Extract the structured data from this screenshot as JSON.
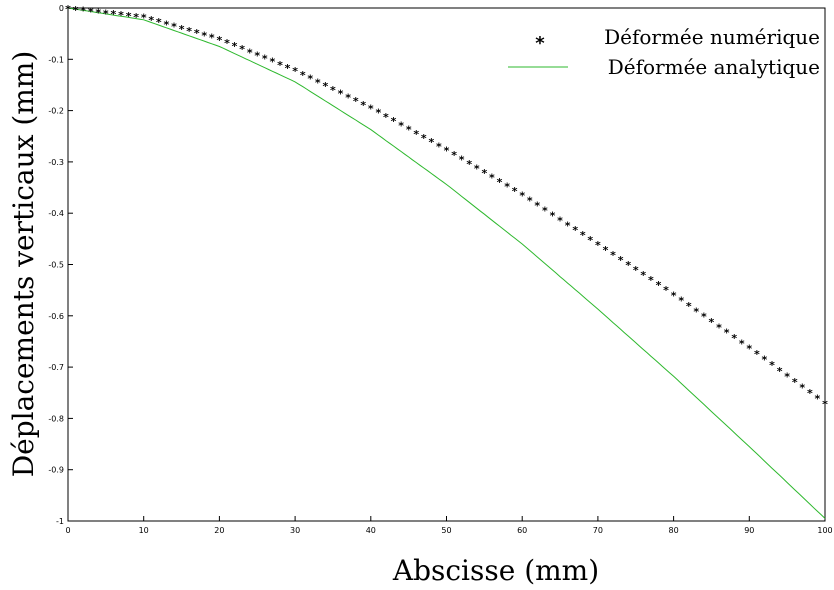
{
  "chart_data": {
    "type": "line",
    "xlabel": "Abscisse (mm)",
    "ylabel": "Déplacements verticaux (mm)",
    "xlim": [
      0,
      100
    ],
    "ylim": [
      -1,
      0
    ],
    "xticks": [
      0,
      10,
      20,
      30,
      40,
      50,
      60,
      70,
      80,
      90,
      100
    ],
    "yticks": [
      0,
      -0.1,
      -0.2,
      -0.3,
      -0.4,
      -0.5,
      -0.6,
      -0.7,
      -0.8,
      -0.9,
      -1
    ],
    "grid": false,
    "legend_position": "top-right",
    "series": [
      {
        "name": "Déformée numérique",
        "style": "star-markers",
        "color": "#000000",
        "x": [
          0,
          10,
          20,
          30,
          40,
          50,
          60,
          70,
          80,
          90,
          100
        ],
        "values": [
          0,
          -0.017,
          -0.06,
          -0.121,
          -0.194,
          -0.276,
          -0.364,
          -0.46,
          -0.558,
          -0.662,
          -0.77
        ]
      },
      {
        "name": "Déformée analytique",
        "style": "line",
        "color": "#2db82d",
        "x": [
          0,
          10,
          20,
          30,
          40,
          50,
          60,
          70,
          80,
          90,
          100
        ],
        "values": [
          0,
          -0.023,
          -0.075,
          -0.144,
          -0.237,
          -0.344,
          -0.46,
          -0.587,
          -0.718,
          -0.855,
          -0.995
        ]
      }
    ]
  }
}
